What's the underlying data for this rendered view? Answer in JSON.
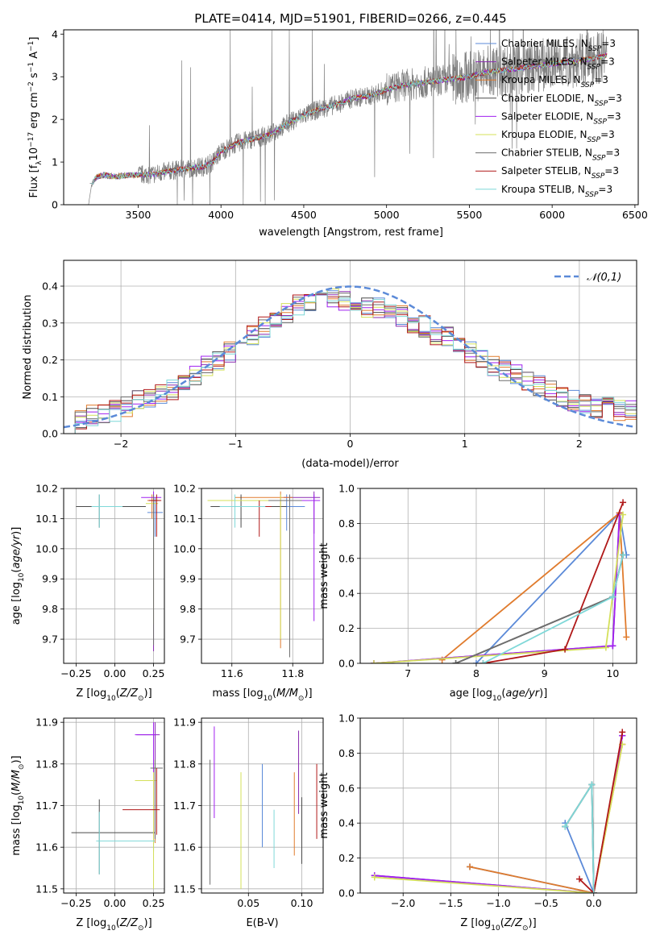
{
  "title": "PLATE=0414, MJD=51901, FIBERID=0266, z=0.445",
  "colors": {
    "chabrier_miles": "#5b8ad8",
    "salpeter_miles": "#8a2bb0",
    "kroupa_miles": "#e07b2d",
    "chabrier_elodie": "#4a4a4a",
    "salpeter_elodie": "#a020f0",
    "kroupa_elodie": "#d4e05a",
    "chabrier_stelib": "#6e6e6e",
    "salpeter_stelib": "#b01818",
    "kroupa_stelib": "#7fd8d8",
    "data_spectrum": "#808080",
    "normal_curve": "#5b8ad8"
  },
  "chart_data": [
    {
      "type": "line",
      "xlabel": "wavelength [Angstrom, rest frame]",
      "ylabel": "Flux [f_λ 10^-17 erg cm^-2 s^-1 A^-1]",
      "xlim": [
        3050,
        6520
      ],
      "ylim": [
        0,
        4.1
      ],
      "xticks": [
        3500,
        4000,
        4500,
        5000,
        5500,
        6000,
        6500
      ],
      "yticks": [
        0,
        1,
        2,
        3,
        4
      ],
      "legend": [
        "Chabrier MILES, N_SSP=3",
        "Salpeter MILES, N_SSP=3",
        "Kroupa MILES, N_SSP=3",
        "Chabrier ELODIE, N_SSP=3",
        "Salpeter ELODIE, N_SSP=3",
        "Kroupa ELODIE, N_SSP=3",
        "Chabrier STELIB, N_SSP=3",
        "Salpeter STELIB, N_SSP=3",
        "Kroupa STELIB, N_SSP=3"
      ],
      "legend_position": "right",
      "spectrum_anchors": {
        "x": [
          3200,
          3220,
          3250,
          3300,
          3350,
          3400,
          3500,
          3600,
          3700,
          3800,
          3900,
          3950,
          4000,
          4100,
          4200,
          4300,
          4400,
          4500,
          4600,
          4700,
          4800,
          4900,
          5000,
          5100,
          5200,
          5300,
          5400,
          5500,
          5600,
          5700,
          5800,
          5900,
          6000,
          6100,
          6200,
          6330
        ],
        "y": [
          0,
          0.5,
          0.65,
          0.7,
          0.65,
          0.68,
          0.7,
          0.72,
          0.8,
          0.85,
          0.9,
          1.0,
          1.25,
          1.45,
          1.55,
          1.65,
          1.9,
          2.1,
          2.25,
          2.35,
          2.5,
          2.55,
          2.7,
          2.8,
          2.85,
          2.9,
          2.95,
          3.0,
          3.1,
          3.15,
          3.2,
          3.25,
          3.3,
          3.35,
          3.4,
          3.5
        ]
      }
    },
    {
      "type": "bar",
      "xlabel": "(data-model)/error",
      "ylabel": "Normed distribution",
      "xlim": [
        -2.5,
        2.5
      ],
      "ylim": [
        0,
        0.47
      ],
      "xticks": [
        -2,
        -1,
        0,
        1,
        2
      ],
      "yticks": [
        0.0,
        0.1,
        0.2,
        0.3,
        0.4
      ],
      "legend": [
        "𝒩(0,1)"
      ],
      "legend_position": "top-right",
      "histogram_bins": [
        -2.5,
        -2.4,
        -2.3,
        -2.2,
        -2.1,
        -2.0,
        -1.9,
        -1.8,
        -1.7,
        -1.6,
        -1.5,
        -1.4,
        -1.3,
        -1.2,
        -1.1,
        -1.0,
        -0.9,
        -0.8,
        -0.7,
        -0.6,
        -0.5,
        -0.4,
        -0.3,
        -0.2,
        -0.1,
        0.0,
        0.1,
        0.2,
        0.3,
        0.4,
        0.5,
        0.6,
        0.7,
        0.8,
        0.9,
        1.0,
        1.1,
        1.2,
        1.3,
        1.4,
        1.5,
        1.6,
        1.7,
        1.8,
        1.9,
        2.0,
        2.1,
        2.2,
        2.3,
        2.4,
        2.5
      ],
      "histogram_values": [
        0.03,
        0.04,
        0.05,
        0.05,
        0.06,
        0.07,
        0.09,
        0.1,
        0.11,
        0.12,
        0.14,
        0.16,
        0.18,
        0.2,
        0.22,
        0.24,
        0.27,
        0.29,
        0.31,
        0.33,
        0.35,
        0.36,
        0.36,
        0.37,
        0.36,
        0.35,
        0.34,
        0.34,
        0.33,
        0.32,
        0.3,
        0.29,
        0.27,
        0.26,
        0.24,
        0.22,
        0.2,
        0.18,
        0.17,
        0.16,
        0.14,
        0.13,
        0.12,
        0.1,
        0.09,
        0.08,
        0.07,
        0.07,
        0.06,
        0.06
      ]
    },
    {
      "type": "scatter",
      "xlabel": "Z [log10(Z/Z☉)]",
      "ylabel": "age  [log10(age/yr)]",
      "xlim": [
        -0.33,
        0.32
      ],
      "ylim": [
        9.62,
        10.2
      ],
      "xticks": [
        -0.25,
        0.0,
        0.25
      ],
      "xtick_labels": [
        "−0.25",
        "0.00",
        "0.25"
      ],
      "yticks": [
        9.7,
        9.8,
        9.9,
        10.0,
        10.1,
        10.2
      ],
      "errorbars": [
        {
          "x": 0.26,
          "y": 10.12,
          "xerr": [
            0.05,
            0.05
          ],
          "yerr": [
            0.08,
            0.05
          ],
          "color": "chabrier_miles"
        },
        {
          "x": 0.25,
          "y": 10.16,
          "xerr": [
            0.03,
            0.03
          ],
          "yerr": [
            0.5,
            0.02
          ],
          "color": "salpeter_miles"
        },
        {
          "x": 0.24,
          "y": 10.16,
          "xerr": [
            0.03,
            0.05
          ],
          "yerr": [
            0.06,
            0.02
          ],
          "color": "kroupa_miles"
        },
        {
          "x": -0.1,
          "y": 10.14,
          "xerr": [
            0.15,
            0.3
          ],
          "yerr": [
            0.07,
            0.04
          ],
          "color": "chabrier_elodie"
        },
        {
          "x": 0.25,
          "y": 10.17,
          "xerr": [
            0.08,
            0.05
          ],
          "yerr": [
            0.12,
            0.02
          ],
          "color": "salpeter_elodie"
        },
        {
          "x": 0.25,
          "y": 10.15,
          "xerr": [
            0.05,
            0.03
          ],
          "yerr": [
            0.4,
            0.02
          ],
          "color": "kroupa_elodie"
        },
        {
          "x": 0.25,
          "y": 10.16,
          "xerr": [
            0.02,
            0.03
          ],
          "yerr": [
            0.48,
            0.02
          ],
          "color": "chabrier_stelib"
        },
        {
          "x": 0.27,
          "y": 10.16,
          "xerr": [
            0.05,
            0.03
          ],
          "yerr": [
            0.12,
            0.02
          ],
          "color": "salpeter_stelib"
        },
        {
          "x": -0.1,
          "y": 10.14,
          "xerr": [
            0.05,
            0.15
          ],
          "yerr": [
            0.07,
            0.04
          ],
          "color": "kroupa_stelib"
        }
      ]
    },
    {
      "type": "scatter",
      "xlabel": "mass [log10(M/M☉)]",
      "ylabel": "",
      "xlim": [
        11.5,
        11.9
      ],
      "ylim": [
        9.62,
        10.2
      ],
      "xticks": [
        11.6,
        11.8
      ],
      "xtick_labels": [
        "11.6",
        "11.8"
      ],
      "yticks": [
        9.7,
        9.8,
        9.9,
        10.0,
        10.1,
        10.2
      ],
      "errorbars": [
        {
          "x": 11.78,
          "y": 10.14,
          "xerr": [
            0.15,
            0.06
          ],
          "yerr": [
            0.08,
            0.04
          ],
          "color": "chabrier_miles"
        },
        {
          "x": 11.87,
          "y": 10.17,
          "xerr": [
            0.1,
            0.02
          ],
          "yerr": [
            0.12,
            0.02
          ],
          "color": "salpeter_miles"
        },
        {
          "x": 11.76,
          "y": 10.17,
          "xerr": [
            0.15,
            0.04
          ],
          "yerr": [
            0.5,
            0.02
          ],
          "color": "kroupa_miles"
        },
        {
          "x": 11.63,
          "y": 10.14,
          "xerr": [
            0.1,
            0.15
          ],
          "yerr": [
            0.07,
            0.04
          ],
          "color": "chabrier_elodie"
        },
        {
          "x": 11.87,
          "y": 10.16,
          "xerr": [
            0.08,
            0.02
          ],
          "yerr": [
            0.4,
            0.02
          ],
          "color": "salpeter_elodie"
        },
        {
          "x": 11.76,
          "y": 10.16,
          "xerr": [
            0.24,
            0.04
          ],
          "yerr": [
            0.46,
            0.02
          ],
          "color": "kroupa_elodie"
        },
        {
          "x": 11.79,
          "y": 10.16,
          "xerr": [
            0.07,
            0.04
          ],
          "yerr": [
            0.52,
            0.02
          ],
          "color": "chabrier_stelib"
        },
        {
          "x": 11.69,
          "y": 10.14,
          "xerr": [
            0.07,
            0.04
          ],
          "yerr": [
            0.1,
            0.02
          ],
          "color": "salpeter_stelib"
        },
        {
          "x": 11.61,
          "y": 10.14,
          "xerr": [
            0.05,
            0.1
          ],
          "yerr": [
            0.07,
            0.04
          ],
          "color": "kroupa_stelib"
        }
      ]
    },
    {
      "type": "line",
      "xlabel": "age  [log10(age/yr)]",
      "ylabel": "mass weight",
      "xlim": [
        6.3,
        10.35
      ],
      "ylim": [
        0,
        1.0
      ],
      "xticks": [
        7,
        8,
        9,
        10
      ],
      "yticks": [
        0.0,
        0.2,
        0.4,
        0.6,
        0.8,
        1.0
      ],
      "series": [
        {
          "color": "chabrier_miles",
          "x": [
            8.0,
            10.1,
            10.2
          ],
          "y": [
            0.0,
            0.86,
            0.62
          ]
        },
        {
          "color": "salpeter_miles",
          "x": [
            6.5,
            10.0,
            10.1
          ],
          "y": [
            0.0,
            0.1,
            0.86
          ]
        },
        {
          "color": "kroupa_miles",
          "x": [
            7.5,
            10.1,
            10.2
          ],
          "y": [
            0.02,
            0.86,
            0.15
          ]
        },
        {
          "color": "chabrier_elodie",
          "x": [
            7.7,
            10.0,
            10.15
          ],
          "y": [
            0.0,
            0.38,
            0.62
          ]
        },
        {
          "color": "salpeter_elodie",
          "x": [
            6.5,
            10.0,
            10.1
          ],
          "y": [
            0.0,
            0.1,
            0.85
          ]
        },
        {
          "color": "kroupa_elodie",
          "x": [
            6.5,
            9.9,
            10.15
          ],
          "y": [
            0.0,
            0.09,
            0.85
          ]
        },
        {
          "color": "chabrier_stelib",
          "x": [
            7.7,
            10.0,
            10.15
          ],
          "y": [
            0.0,
            0.38,
            0.62
          ]
        },
        {
          "color": "salpeter_stelib",
          "x": [
            8.1,
            9.3,
            10.15
          ],
          "y": [
            0.0,
            0.08,
            0.92
          ]
        },
        {
          "color": "kroupa_stelib",
          "x": [
            8.1,
            10.0,
            10.15
          ],
          "y": [
            0.0,
            0.38,
            0.62
          ]
        }
      ]
    },
    {
      "type": "scatter",
      "xlabel": "Z [log10(Z/Z☉)]",
      "ylabel": "mass [log10(M/M☉)]",
      "xlim": [
        -0.33,
        0.32
      ],
      "ylim": [
        11.49,
        11.91
      ],
      "xticks": [
        -0.25,
        0.0,
        0.25
      ],
      "xtick_labels": [
        "−0.25",
        "0.00",
        "0.25"
      ],
      "yticks": [
        11.5,
        11.6,
        11.7,
        11.8,
        11.9
      ],
      "errorbars": [
        {
          "x": 0.25,
          "y": 11.79,
          "xerr": [
            0.02,
            0.03
          ],
          "yerr": [
            0.2,
            0.02
          ],
          "color": "chabrier_miles"
        },
        {
          "x": 0.26,
          "y": 11.87,
          "xerr": [
            0.12,
            0.03
          ],
          "yerr": [
            0.25,
            0.03
          ],
          "color": "salpeter_miles"
        },
        {
          "x": 0.26,
          "y": 11.79,
          "xerr": [
            0.02,
            0.03
          ],
          "yerr": [
            0.18,
            0.02
          ],
          "color": "kroupa_miles"
        },
        {
          "x": -0.1,
          "y": 11.635,
          "xerr": [
            0.18,
            0.36
          ],
          "yerr": [
            0.1,
            0.08
          ],
          "color": "chabrier_elodie"
        },
        {
          "x": 0.25,
          "y": 11.87,
          "xerr": [
            0.12,
            0.02
          ],
          "yerr": [
            0.25,
            0.03
          ],
          "color": "salpeter_elodie"
        },
        {
          "x": 0.25,
          "y": 11.76,
          "xerr": [
            0.12,
            0.02
          ],
          "yerr": [
            0.26,
            0.02
          ],
          "color": "kroupa_elodie"
        },
        {
          "x": 0.26,
          "y": 11.79,
          "xerr": [
            0.03,
            0.05
          ],
          "yerr": [
            0.17,
            0.02
          ],
          "color": "chabrier_stelib"
        },
        {
          "x": 0.27,
          "y": 11.69,
          "xerr": [
            0.22,
            0.02
          ],
          "yerr": [
            0.06,
            0.1
          ],
          "color": "salpeter_stelib"
        },
        {
          "x": -0.1,
          "y": 11.615,
          "xerr": [
            0.02,
            0.36
          ],
          "yerr": [
            0.08,
            0.07
          ],
          "color": "kroupa_stelib"
        }
      ]
    },
    {
      "type": "scatter",
      "xlabel": "E(B-V)",
      "ylabel": "",
      "xlim": [
        0.006,
        0.12
      ],
      "ylim": [
        11.49,
        11.91
      ],
      "xticks": [
        0.05,
        0.1
      ],
      "xtick_labels": [
        "0.05",
        "0.10"
      ],
      "yticks": [
        11.5,
        11.6,
        11.7,
        11.8,
        11.9
      ],
      "errorbars": [
        {
          "x": 0.063,
          "y": 11.7,
          "xerr": [
            0,
            0
          ],
          "yerr": [
            0.1,
            0.1
          ],
          "color": "chabrier_miles"
        },
        {
          "x": 0.097,
          "y": 11.78,
          "xerr": [
            0,
            0
          ],
          "yerr": [
            0.1,
            0.1
          ],
          "color": "salpeter_miles"
        },
        {
          "x": 0.093,
          "y": 11.68,
          "xerr": [
            0,
            0
          ],
          "yerr": [
            0.1,
            0.1
          ],
          "color": "kroupa_miles"
        },
        {
          "x": 0.1,
          "y": 11.64,
          "xerr": [
            0,
            0
          ],
          "yerr": [
            0.08,
            0.08
          ],
          "color": "chabrier_elodie"
        },
        {
          "x": 0.018,
          "y": 11.78,
          "xerr": [
            0,
            0
          ],
          "yerr": [
            0.11,
            0.11
          ],
          "color": "salpeter_elodie"
        },
        {
          "x": 0.043,
          "y": 11.64,
          "xerr": [
            0,
            0
          ],
          "yerr": [
            0.14,
            0.14
          ],
          "color": "kroupa_elodie"
        },
        {
          "x": 0.014,
          "y": 11.66,
          "xerr": [
            0,
            0
          ],
          "yerr": [
            0.15,
            0.15
          ],
          "color": "chabrier_stelib"
        },
        {
          "x": 0.114,
          "y": 11.71,
          "xerr": [
            0,
            0
          ],
          "yerr": [
            0.09,
            0.09
          ],
          "color": "salpeter_stelib"
        },
        {
          "x": 0.074,
          "y": 11.62,
          "xerr": [
            0,
            0
          ],
          "yerr": [
            0.07,
            0.07
          ],
          "color": "kroupa_stelib"
        }
      ]
    },
    {
      "type": "line",
      "xlabel": "Z [log10(Z/Z☉)]",
      "ylabel": "mass weight",
      "xlim": [
        -2.45,
        0.45
      ],
      "ylim": [
        0,
        1.0
      ],
      "xticks": [
        -2.0,
        -1.5,
        -1.0,
        -0.5,
        0.0
      ],
      "xtick_labels": [
        "−2.0",
        "−1.5",
        "−1.0",
        "−0.5",
        "0.0"
      ],
      "yticks": [
        0.0,
        0.2,
        0.4,
        0.6,
        0.8,
        1.0
      ],
      "series": [
        {
          "color": "chabrier_miles",
          "x": [
            -1.3,
            0.0,
            -0.3
          ],
          "y": [
            0.15,
            0.0,
            0.4
          ]
        },
        {
          "color": "salpeter_miles",
          "x": [
            -2.3,
            0.0,
            0.3
          ],
          "y": [
            0.1,
            0.0,
            0.9
          ]
        },
        {
          "color": "kroupa_miles",
          "x": [
            -1.3,
            0.0,
            0.3
          ],
          "y": [
            0.15,
            0.0,
            0.85
          ]
        },
        {
          "color": "chabrier_elodie",
          "x": [
            -0.3,
            -0.02,
            0.0
          ],
          "y": [
            0.38,
            0.62,
            0.0
          ]
        },
        {
          "color": "salpeter_elodie",
          "x": [
            -2.3,
            0.0,
            0.3
          ],
          "y": [
            0.1,
            0.0,
            0.9
          ]
        },
        {
          "color": "kroupa_elodie",
          "x": [
            -2.3,
            0.0,
            0.3
          ],
          "y": [
            0.09,
            0.0,
            0.85
          ]
        },
        {
          "color": "chabrier_stelib",
          "x": [
            -0.3,
            -0.02,
            0.0
          ],
          "y": [
            0.38,
            0.62,
            0.0
          ]
        },
        {
          "color": "salpeter_stelib",
          "x": [
            -0.15,
            0.0,
            0.3
          ],
          "y": [
            0.08,
            0.0,
            0.92
          ]
        },
        {
          "color": "kroupa_stelib",
          "x": [
            -0.3,
            -0.02,
            0.0
          ],
          "y": [
            0.38,
            0.62,
            0.0
          ]
        }
      ]
    }
  ]
}
